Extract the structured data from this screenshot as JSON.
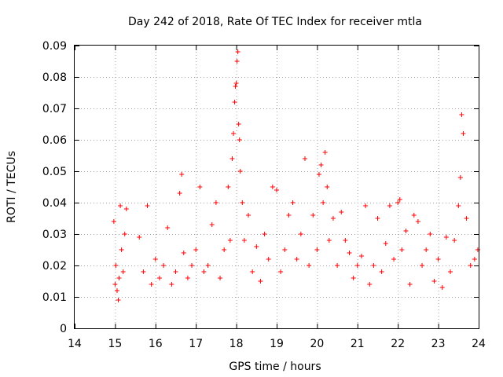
{
  "chart_data": {
    "type": "scatter",
    "title": "Day 242 of 2018, Rate Of TEC Index for receiver mtla",
    "xlabel": "GPS time / hours",
    "ylabel": "ROTI / TECUs",
    "xlim": [
      14,
      24
    ],
    "ylim": [
      0,
      0.09
    ],
    "grid": true,
    "marker": "+",
    "color": "#ff0000",
    "x_ticks": [
      14,
      15,
      16,
      17,
      18,
      19,
      20,
      21,
      22,
      23,
      24
    ],
    "x_tick_labels": [
      "14",
      "15",
      "16",
      "17",
      "18",
      "19",
      "20",
      "21",
      "22",
      "23",
      "24"
    ],
    "y_ticks": [
      0,
      0.01,
      0.02,
      0.03,
      0.04,
      0.05,
      0.06,
      0.07,
      0.08,
      0.09
    ],
    "y_tick_labels": [
      "0",
      "0.01",
      "0.02",
      "0.03",
      "0.04",
      "0.05",
      "0.06",
      "0.07",
      "0.08",
      "0.09"
    ],
    "series": [
      {
        "name": "ROTI",
        "x": [
          14.97,
          15.0,
          15.02,
          15.05,
          15.08,
          15.1,
          15.13,
          15.16,
          15.2,
          15.24,
          15.28,
          15.6,
          15.7,
          15.8,
          15.9,
          16.0,
          16.1,
          16.2,
          16.3,
          16.4,
          16.5,
          16.6,
          16.65,
          16.7,
          16.8,
          16.9,
          17.0,
          17.1,
          17.2,
          17.3,
          17.4,
          17.5,
          17.6,
          17.7,
          17.8,
          17.85,
          17.9,
          17.93,
          17.96,
          17.98,
          18.0,
          18.02,
          18.04,
          18.06,
          18.08,
          18.1,
          18.15,
          18.2,
          18.3,
          18.4,
          18.5,
          18.6,
          18.7,
          18.8,
          18.9,
          19.0,
          19.1,
          19.2,
          19.3,
          19.4,
          19.5,
          19.6,
          19.7,
          19.8,
          19.9,
          20.0,
          20.05,
          20.1,
          20.15,
          20.2,
          20.25,
          20.3,
          20.4,
          20.5,
          20.6,
          20.7,
          20.8,
          20.9,
          21.0,
          21.1,
          21.2,
          21.3,
          21.4,
          21.5,
          21.6,
          21.7,
          21.8,
          21.9,
          22.0,
          22.05,
          22.1,
          22.2,
          22.3,
          22.4,
          22.5,
          22.6,
          22.7,
          22.8,
          22.9,
          23.0,
          23.1,
          23.2,
          23.3,
          23.4,
          23.5,
          23.55,
          23.58,
          23.62,
          23.7,
          23.8,
          23.9,
          23.98
        ],
        "y": [
          0.034,
          0.014,
          0.02,
          0.012,
          0.009,
          0.016,
          0.039,
          0.025,
          0.018,
          0.03,
          0.038,
          0.029,
          0.018,
          0.039,
          0.014,
          0.022,
          0.016,
          0.02,
          0.032,
          0.014,
          0.018,
          0.043,
          0.049,
          0.024,
          0.016,
          0.02,
          0.025,
          0.045,
          0.018,
          0.02,
          0.033,
          0.04,
          0.016,
          0.025,
          0.045,
          0.028,
          0.054,
          0.062,
          0.072,
          0.077,
          0.078,
          0.085,
          0.088,
          0.065,
          0.06,
          0.05,
          0.04,
          0.028,
          0.036,
          0.018,
          0.026,
          0.015,
          0.03,
          0.022,
          0.045,
          0.044,
          0.018,
          0.025,
          0.036,
          0.04,
          0.022,
          0.03,
          0.054,
          0.02,
          0.036,
          0.025,
          0.049,
          0.052,
          0.04,
          0.056,
          0.045,
          0.028,
          0.035,
          0.02,
          0.037,
          0.028,
          0.024,
          0.016,
          0.02,
          0.023,
          0.039,
          0.014,
          0.02,
          0.035,
          0.018,
          0.027,
          0.039,
          0.022,
          0.04,
          0.041,
          0.025,
          0.031,
          0.014,
          0.036,
          0.034,
          0.02,
          0.025,
          0.03,
          0.015,
          0.022,
          0.013,
          0.029,
          0.018,
          0.028,
          0.039,
          0.048,
          0.068,
          0.062,
          0.035,
          0.02,
          0.022,
          0.025
        ]
      }
    ]
  }
}
